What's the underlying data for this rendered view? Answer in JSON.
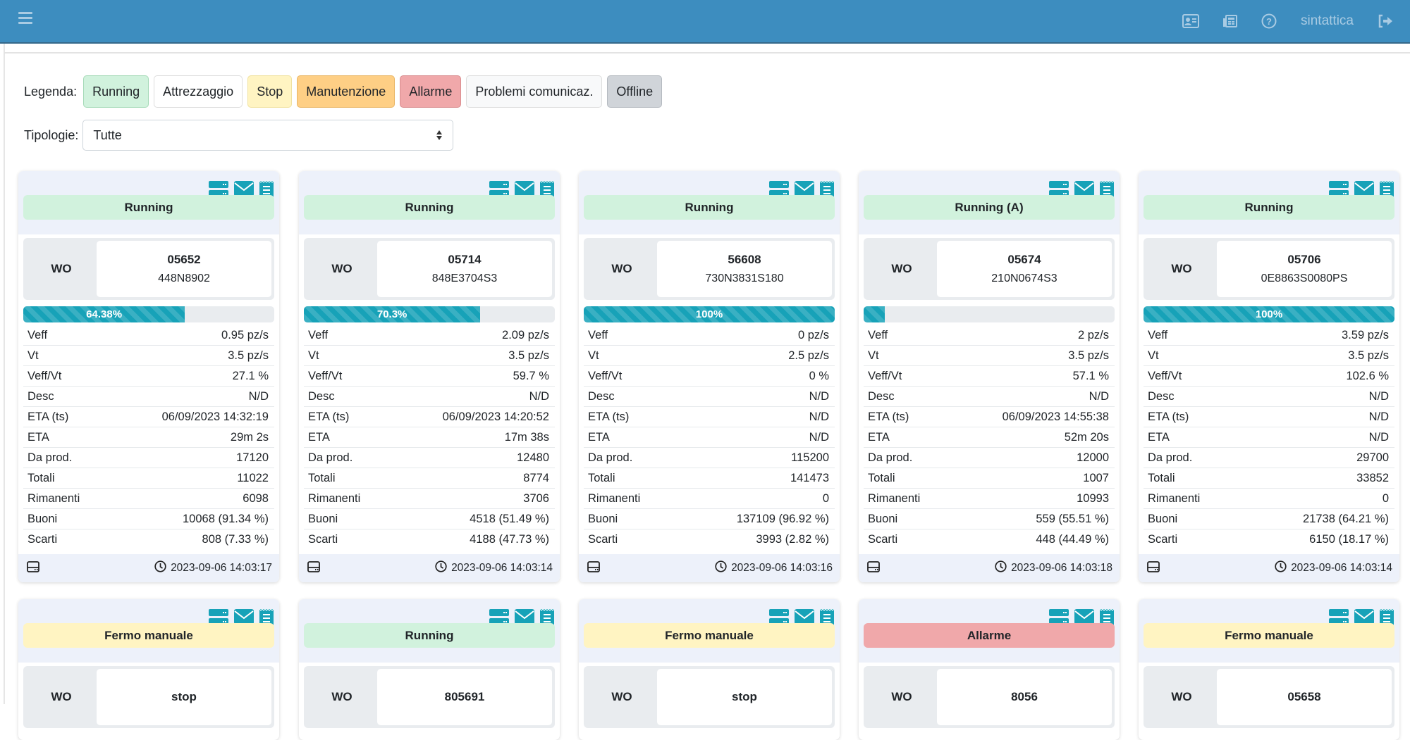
{
  "header": {
    "username": "sintattica",
    "icons": [
      "menu-icon",
      "id-card-icon",
      "newspaper-icon",
      "help-icon",
      "logout-icon"
    ]
  },
  "legend": {
    "label": "Legenda:",
    "items": [
      {
        "label": "Running",
        "bg": "#d1f2dd",
        "border": "#a6dab8"
      },
      {
        "label": "Attrezzaggio",
        "bg": "#ffffff",
        "border": "#dddddd"
      },
      {
        "label": "Stop",
        "bg": "#fff4c2",
        "border": "#f0e2a0"
      },
      {
        "label": "Manutenzione",
        "bg": "#fecf85",
        "border": "#e9b666"
      },
      {
        "label": "Allarme",
        "bg": "#f0a8aa",
        "border": "#d98e90"
      },
      {
        "label": "Problemi comunicaz.",
        "bg": "#f8f9fa",
        "border": "#dddddd"
      },
      {
        "label": "Offline",
        "bg": "#d0d4d9",
        "border": "#b5bac0"
      }
    ]
  },
  "filter": {
    "label": "Tipologie:",
    "value": "Tutte"
  },
  "colors": {
    "accent": "#17a2b8",
    "header": "#3d8dbf",
    "running": "#d1f2dd",
    "stop": "#fff4c2",
    "alarm": "#f0a8aa"
  },
  "wo_label": "WO",
  "row_labels": [
    "Veff",
    "Vt",
    "Veff/Vt",
    "Desc",
    "ETA (ts)",
    "ETA",
    "Da prod.",
    "Totali",
    "Rimanenti",
    "Buoni",
    "Scarti"
  ],
  "cards": [
    {
      "status": "Running",
      "status_color": "#d1f2dd",
      "wo": "05652",
      "part": "448N8902",
      "progress": 64.38,
      "progress_label": "64.38%",
      "values": [
        "0.95 pz/s",
        "3.5 pz/s",
        "27.1 %",
        "N/D",
        "06/09/2023 14:32:19",
        "29m 2s",
        "17120",
        "11022",
        "6098",
        "10068 (91.34 %)",
        "808 (7.33 %)"
      ],
      "timestamp": "2023-09-06 14:03:17"
    },
    {
      "status": "Running",
      "status_color": "#d1f2dd",
      "wo": "05714",
      "part": "848E3704S3",
      "progress": 70.3,
      "progress_label": "70.3%",
      "values": [
        "2.09 pz/s",
        "3.5 pz/s",
        "59.7 %",
        "N/D",
        "06/09/2023 14:20:52",
        "17m 38s",
        "12480",
        "8774",
        "3706",
        "4518 (51.49 %)",
        "4188 (47.73 %)"
      ],
      "timestamp": "2023-09-06 14:03:14"
    },
    {
      "status": "Running",
      "status_color": "#d1f2dd",
      "wo": "56608",
      "part": "730N3831S180",
      "progress": 100,
      "progress_label": "100%",
      "values": [
        "0 pz/s",
        "2.5 pz/s",
        "0 %",
        "N/D",
        "N/D",
        "N/D",
        "115200",
        "141473",
        "0",
        "137109 (96.92 %)",
        "3993 (2.82 %)"
      ],
      "timestamp": "2023-09-06 14:03:16"
    },
    {
      "status": "Running (A)",
      "status_color": "#d1f2dd",
      "wo": "05674",
      "part": "210N0674S3",
      "progress": 8.4,
      "progress_label": "",
      "values": [
        "2 pz/s",
        "3.5 pz/s",
        "57.1 %",
        "N/D",
        "06/09/2023 14:55:38",
        "52m 20s",
        "12000",
        "1007",
        "10993",
        "559 (55.51 %)",
        "448 (44.49 %)"
      ],
      "timestamp": "2023-09-06 14:03:18"
    },
    {
      "status": "Running",
      "status_color": "#d1f2dd",
      "wo": "05706",
      "part": "0E8863S0080PS",
      "progress": 100,
      "progress_label": "100%",
      "values": [
        "3.59 pz/s",
        "3.5 pz/s",
        "102.6 %",
        "N/D",
        "N/D",
        "N/D",
        "29700",
        "33852",
        "0",
        "21738 (64.21 %)",
        "6150 (18.17 %)"
      ],
      "timestamp": "2023-09-06 14:03:14"
    },
    {
      "status": "Fermo manuale",
      "status_color": "#fff4c2",
      "wo": "stop"
    },
    {
      "status": "Running",
      "status_color": "#d1f2dd",
      "wo": "805691"
    },
    {
      "status": "Fermo manuale",
      "status_color": "#fff4c2",
      "wo": "stop"
    },
    {
      "status": "Allarme",
      "status_color": "#f0a8aa",
      "wo": "8056"
    },
    {
      "status": "Fermo manuale",
      "status_color": "#fff4c2",
      "wo": "05658"
    }
  ]
}
